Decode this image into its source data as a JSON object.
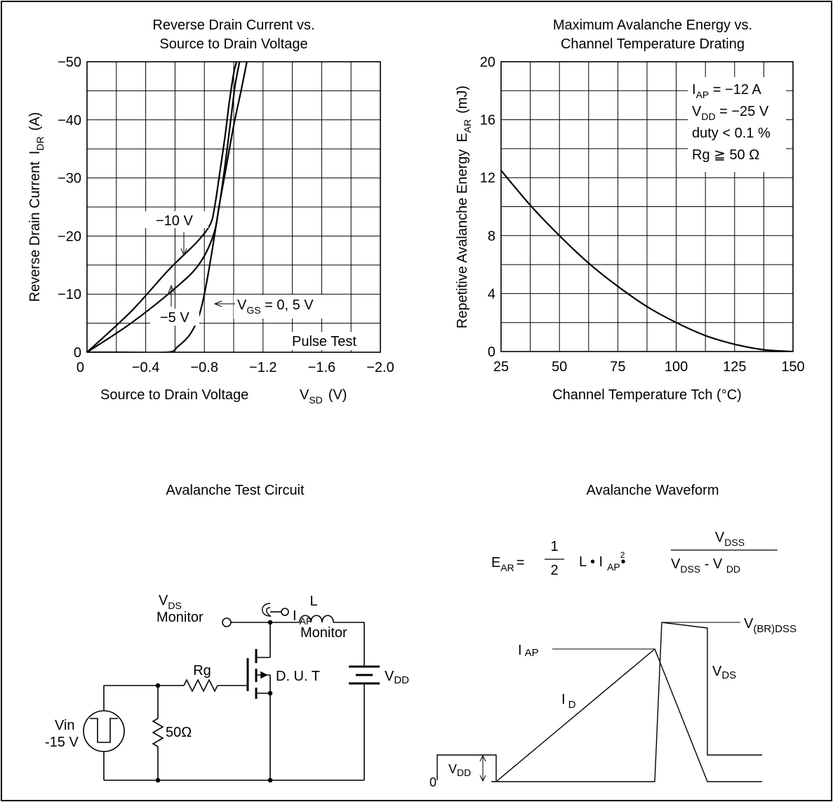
{
  "chart_data": [
    {
      "type": "line",
      "title": [
        "Reverse Drain Current vs.",
        "Source to Drain Voltage"
      ],
      "xlabel": "Source to Drain Voltage",
      "xlabel_symbol": {
        "main": "V",
        "sub": "SD",
        "unit": "(V)"
      },
      "ylabel": "Reverse Drain Current",
      "ylabel_symbol": {
        "main": "I",
        "sub": "DR",
        "unit": "(A)"
      },
      "xlim": [
        0,
        -2.0
      ],
      "ylim": [
        0,
        -50
      ],
      "x_ticks": [
        "0",
        "−0.4",
        "−0.8",
        "−1.2",
        "−1.6",
        "−2.0"
      ],
      "y_ticks": [
        "0",
        "−10",
        "−20",
        "−30",
        "−40",
        "−50"
      ],
      "grid": true,
      "note": "Pulse Test",
      "series": [
        {
          "name": "VGS = 0, 5 V",
          "label_main": "V",
          "label_sub": "GS",
          "label_rest": " = 0, 5 V",
          "x": [
            0,
            -0.25,
            -0.55,
            -0.62,
            -0.7,
            -0.76,
            -0.8,
            -0.85,
            -0.9,
            -0.95,
            -1.0,
            -1.05,
            -1.09
          ],
          "y": [
            0,
            0,
            0,
            -1,
            -3,
            -6,
            -10,
            -17,
            -25,
            -32,
            -39,
            -45,
            -50
          ]
        },
        {
          "name": "−5 V",
          "label": "−5 V",
          "x": [
            0,
            -0.3,
            -0.6,
            -0.76,
            -0.86,
            -0.9,
            -0.94,
            -0.98,
            -1.01,
            -1.04
          ],
          "y": [
            0,
            -5,
            -11,
            -15,
            -20,
            -25,
            -32,
            -40,
            -46,
            -50
          ]
        },
        {
          "name": "−10 V",
          "label": "−10 V",
          "x": [
            0,
            -0.3,
            -0.55,
            -0.75,
            -0.84,
            -0.87,
            -0.9,
            -0.94,
            -0.97,
            -1.0,
            -1.02
          ],
          "y": [
            0,
            -7,
            -14,
            -19,
            -22,
            -25,
            -30,
            -37,
            -43,
            -48,
            -50
          ]
        }
      ]
    },
    {
      "type": "line",
      "title": [
        "Maximum Avalanche Energy vs.",
        "Channel Temperature Drating"
      ],
      "xlabel": "Channel Temperature  Tch  (°C)",
      "ylabel": "Repetitive Avalanche Energy",
      "ylabel_symbol": {
        "main": "E",
        "sub": "AR",
        "unit": "(mJ)"
      },
      "xlim": [
        25,
        150
      ],
      "ylim": [
        0,
        20
      ],
      "x_ticks": [
        "25",
        "50",
        "75",
        "100",
        "125",
        "150"
      ],
      "y_ticks": [
        "0",
        "4",
        "8",
        "12",
        "16",
        "20"
      ],
      "grid": true,
      "conditions": [
        {
          "main": "I",
          "sub": "AP",
          "rest": " = −12 A"
        },
        {
          "main": "V",
          "sub": "DD",
          "rest": " = −25 V"
        },
        {
          "main": "duty < 0.1 %",
          "sub": "",
          "rest": ""
        },
        {
          "main": "Rg ≧ 50 Ω",
          "sub": "",
          "rest": ""
        }
      ],
      "series": [
        {
          "x": [
            25,
            37.5,
            50,
            62.5,
            75,
            87.5,
            100,
            112.5,
            125,
            137.5,
            150
          ],
          "y": [
            12.5,
            10.1,
            8.0,
            6.1,
            4.5,
            3.1,
            2.0,
            1.1,
            0.5,
            0.12,
            0
          ]
        }
      ]
    }
  ],
  "circuit": {
    "title": "Avalanche Test Circuit",
    "vds_monitor": {
      "main": "V",
      "sub": "DS",
      "line2": "Monitor"
    },
    "iap_monitor": {
      "main": "I",
      "sub": "AP",
      "line2": "Monitor"
    },
    "inductor": "L",
    "resistor_gate": "Rg",
    "dut": "D. U. T",
    "vdd": {
      "main": "V",
      "sub": "DD"
    },
    "vin": [
      "Vin",
      "-15 V"
    ],
    "resistor_50": "50Ω"
  },
  "waveform": {
    "title": "Avalanche Waveform",
    "formula": {
      "lhs_main": "E",
      "lhs_sub": "AR",
      "eq": "=",
      "frac_num": "1",
      "frac_den": "2",
      "mid": "L • I",
      "mid_sub": "AP",
      "sq": "2",
      "dot": "•",
      "rhs_num_main": "V",
      "rhs_num_sub": "DSS",
      "rhs_den_main": "V",
      "rhs_den_sub": "DSS",
      "rhs_den_rest": " - V ",
      "rhs_den_sub2": "DD"
    },
    "labels": {
      "iap": {
        "main": "I",
        "sub": "AP"
      },
      "id": {
        "main": "I",
        "sub": "D"
      },
      "vds": {
        "main": "V",
        "sub": "DS"
      },
      "vbr": {
        "main": "V",
        "sub": "(BR)DSS"
      },
      "vdd": {
        "main": "V",
        "sub": "DD"
      },
      "zero": "0"
    }
  }
}
